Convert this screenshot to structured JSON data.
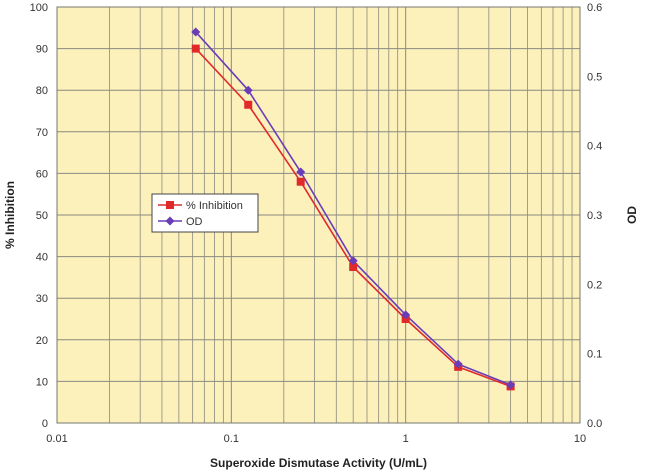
{
  "chart_data": {
    "type": "line",
    "title": "",
    "xlabel": "Superoxide Dismutase Activity (U/mL)",
    "ylabel": "% Inhibition",
    "y2label": "OD",
    "x_scale": "log",
    "xlim": [
      0.01,
      10
    ],
    "ylim": [
      0,
      100
    ],
    "y2lim": [
      0,
      0.6
    ],
    "x_ticks": [
      "0.01",
      "0.1",
      "1",
      "10"
    ],
    "y_ticks": [
      "0",
      "10",
      "20",
      "30",
      "40",
      "50",
      "60",
      "70",
      "80",
      "90",
      "100"
    ],
    "y2_ticks": [
      "0.0",
      "0.1",
      "0.2",
      "0.3",
      "0.4",
      "0.5",
      "0.6"
    ],
    "grid": true,
    "legend_position": "left-center",
    "x": [
      0.0625,
      0.125,
      0.25,
      0.5,
      1,
      2,
      4
    ],
    "series": [
      {
        "name": "% Inhibition",
        "axis": "left",
        "marker": "square",
        "color": "#e02a2a",
        "values": [
          90,
          76.5,
          58,
          37.5,
          25,
          13.5,
          8.8
        ]
      },
      {
        "name": "OD",
        "axis": "right",
        "marker": "diamond",
        "color": "#6a3db8",
        "values": [
          0.564,
          0.48,
          0.362,
          0.234,
          0.156,
          0.085,
          0.055
        ]
      }
    ],
    "colors": {
      "plot_background": "#fcf0bb",
      "grid": "#8a8a80"
    }
  }
}
